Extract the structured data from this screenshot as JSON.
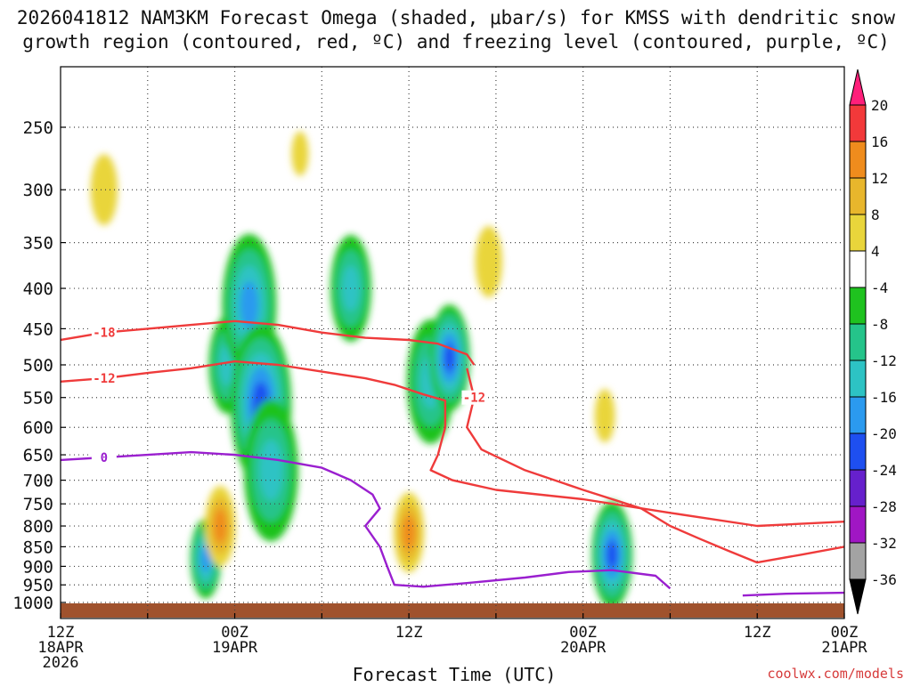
{
  "chart_data": {
    "type": "contour",
    "title_line1": "2026041812 NAM3KM Forecast Omega (shaded, μbar/s) for KMSS with dendritic snow",
    "title_line2": "growth region (contoured, red, ºC) and freezing level (contoured, purple, ºC)",
    "xlabel": "Forecast Time (UTC)",
    "credit": "coolwx.com/models",
    "x_range_hours": [
      0,
      54
    ],
    "x_ticks": [
      {
        "h": 0,
        "lines": [
          "12Z",
          "18APR",
          "2026"
        ]
      },
      {
        "h": 6,
        "lines": []
      },
      {
        "h": 12,
        "lines": [
          "00Z",
          "19APR"
        ]
      },
      {
        "h": 18,
        "lines": []
      },
      {
        "h": 24,
        "lines": [
          "12Z"
        ]
      },
      {
        "h": 30,
        "lines": []
      },
      {
        "h": 36,
        "lines": [
          "00Z",
          "20APR"
        ]
      },
      {
        "h": 42,
        "lines": []
      },
      {
        "h": 48,
        "lines": [
          "12Z"
        ]
      },
      {
        "h": 54,
        "lines": [
          "00Z",
          "21APR"
        ]
      }
    ],
    "pressure_levels": [
      "250",
      "300",
      "350",
      "400",
      "450",
      "500",
      "550",
      "600",
      "650",
      "700",
      "750",
      "800",
      "850",
      "900",
      "950",
      "1000"
    ],
    "colorbar": {
      "labels": [
        "20",
        "16",
        "12",
        "8",
        "4",
        "-4",
        "-8",
        "-12",
        "-16",
        "-20",
        "-24",
        "-28",
        "-32",
        "-36"
      ],
      "colors": [
        "#ff1f7a",
        "#f2393a",
        "#ef8c1d",
        "#e8b62c",
        "#e9d53b",
        "#ffffff",
        "#1fc21f",
        "#25c48a",
        "#2dc3c4",
        "#2b9aef",
        "#1e4ff0",
        "#6620cc",
        "#a016c4",
        "#a3a3a3",
        "#000000"
      ]
    },
    "omega_cells": [
      {
        "h": 11.5,
        "p": 500,
        "r": 55,
        "value": -14
      },
      {
        "h": 13.0,
        "p": 420,
        "r": 80,
        "value": -18
      },
      {
        "h": 13.8,
        "p": 560,
        "r": 90,
        "value": -22
      },
      {
        "h": 14.5,
        "p": 680,
        "r": 80,
        "value": -12
      },
      {
        "h": 20.0,
        "p": 400,
        "r": 60,
        "value": -12
      },
      {
        "h": 25.5,
        "p": 525,
        "r": 70,
        "value": -14
      },
      {
        "h": 26.8,
        "p": 490,
        "r": 60,
        "value": -20
      },
      {
        "h": 38.0,
        "p": 870,
        "r": 60,
        "value": -22
      },
      {
        "h": 10.0,
        "p": 880,
        "r": 45,
        "value": -16
      },
      {
        "h": 11.0,
        "p": 800,
        "r": 45,
        "value": 12
      },
      {
        "h": 24.0,
        "p": 815,
        "r": 45,
        "value": 14
      },
      {
        "h": 3.0,
        "p": 300,
        "r": 40,
        "value": 6
      },
      {
        "h": 16.5,
        "p": 270,
        "r": 25,
        "value": 5
      },
      {
        "h": 29.5,
        "p": 370,
        "r": 40,
        "value": 6
      },
      {
        "h": 37.5,
        "p": 580,
        "r": 30,
        "value": 5
      }
    ],
    "contours": [
      {
        "label": "-18",
        "color": "#ef3b3b",
        "points": [
          [
            0,
            465
          ],
          [
            3,
            455
          ],
          [
            6,
            450
          ],
          [
            9,
            445
          ],
          [
            12,
            440
          ],
          [
            15,
            445
          ],
          [
            18,
            455
          ],
          [
            21,
            462
          ],
          [
            24,
            465
          ],
          [
            26,
            470
          ],
          [
            28,
            485
          ],
          [
            28.5,
            500
          ]
        ]
      },
      {
        "label": "-12",
        "color": "#ef3b3b",
        "points": [
          [
            0,
            525
          ],
          [
            3,
            520
          ],
          [
            6,
            512
          ],
          [
            9,
            505
          ],
          [
            12,
            495
          ],
          [
            15,
            500
          ],
          [
            18,
            510
          ],
          [
            21,
            520
          ],
          [
            23,
            530
          ],
          [
            25,
            545
          ],
          [
            26.5,
            555
          ],
          [
            26.5,
            600
          ],
          [
            26,
            650
          ],
          [
            25.5,
            680
          ],
          [
            27,
            700
          ],
          [
            30,
            720
          ],
          [
            36,
            740
          ],
          [
            42,
            770
          ],
          [
            48,
            800
          ],
          [
            54,
            790
          ]
        ]
      },
      {
        "label": "-12",
        "color": "#ef3b3b",
        "points": [
          [
            28,
            505
          ],
          [
            28.5,
            550
          ],
          [
            28,
            600
          ],
          [
            29,
            640
          ],
          [
            32,
            680
          ],
          [
            36,
            720
          ],
          [
            40,
            760
          ],
          [
            42,
            800
          ],
          [
            44,
            830
          ],
          [
            46,
            860
          ],
          [
            48,
            890
          ],
          [
            51,
            870
          ],
          [
            54,
            850
          ]
        ]
      },
      {
        "label": "0",
        "color": "#9a1fcf",
        "points": [
          [
            0,
            660
          ],
          [
            3,
            655
          ],
          [
            6,
            650
          ],
          [
            9,
            645
          ],
          [
            12,
            650
          ],
          [
            15,
            660
          ],
          [
            18,
            675
          ],
          [
            20,
            700
          ],
          [
            21.5,
            730
          ],
          [
            22,
            760
          ],
          [
            21,
            800
          ],
          [
            22,
            850
          ],
          [
            22.5,
            900
          ],
          [
            23,
            950
          ],
          [
            25,
            955
          ],
          [
            28,
            945
          ],
          [
            32,
            930
          ],
          [
            35,
            915
          ],
          [
            38,
            910
          ],
          [
            41,
            925
          ],
          [
            42,
            960
          ]
        ]
      },
      {
        "label": "",
        "color": "#9a1fcf",
        "points": [
          [
            47,
            980
          ],
          [
            50,
            975
          ],
          [
            54,
            972
          ]
        ]
      }
    ]
  }
}
